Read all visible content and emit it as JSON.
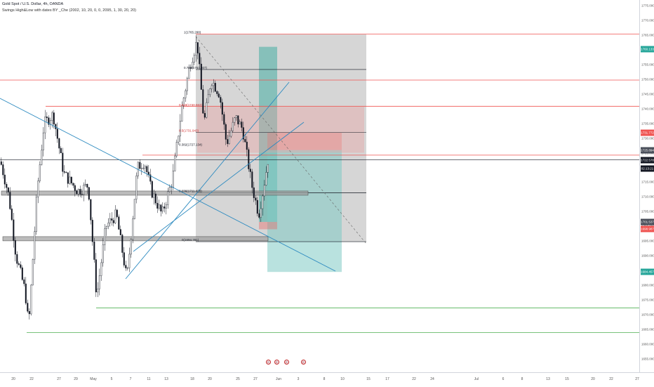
{
  "header": {
    "symbol_line": "Gold Spot / U.S. Dollar, 4h, OANDA",
    "indicator_line": "Swings High&Low with dates BY _Che (2002, 10, 20, 0, 0, 2095, 1, 30, 20, 20)"
  },
  "price_axis": {
    "labels": [
      "1775.000",
      "1770.000",
      "1765.000",
      "1760.000",
      "1755.000",
      "1750.000",
      "1745.000",
      "1740.000",
      "1735.000",
      "1730.000",
      "1725.000",
      "1720.000",
      "1715.000",
      "1710.000",
      "1705.000",
      "1700.000",
      "1695.000",
      "1690.000",
      "1685.000",
      "1680.000",
      "1675.000",
      "1670.000",
      "1665.000",
      "1660.000",
      "1655.000"
    ],
    "badges": [
      {
        "text": "1760.133",
        "color": "#26a69a"
      },
      {
        "text": "1731.772",
        "color": "#ef5350"
      },
      {
        "text": "1725.894",
        "color": "#4a4f5a"
      },
      {
        "text": "1722.578",
        "color": "#131722"
      },
      {
        "text": "02:13:21",
        "color": "#131722"
      },
      {
        "text": "1701.537",
        "color": "#4a4f5a"
      },
      {
        "text": "1698.987",
        "color": "#ef5350"
      },
      {
        "text": "1684.457",
        "color": "#26a69a"
      }
    ]
  },
  "time_axis": {
    "labels": [
      "20",
      "22",
      "27",
      "29",
      "May",
      "5",
      "7",
      "11",
      "13",
      "18",
      "20",
      "25",
      "27",
      "Jun",
      "3",
      "8",
      "10",
      "15",
      "17",
      "22",
      "24",
      "Jul",
      "6",
      "8",
      "13",
      "15",
      "20",
      "22",
      "27"
    ]
  },
  "fib_labels": [
    "1(1765.288)",
    "0.786(1753.307)",
    "0.618(1740.563)",
    "0.5(1731.943)",
    "0.382(1727.134)",
    "0.236(1711.428)",
    "0(1694.781)"
  ],
  "events": [
    "E",
    "E",
    "E",
    "E"
  ],
  "colors": {
    "up": "#ffffff",
    "down": "#131722",
    "trend": "#2e8bc0",
    "resistance": "#ef5350",
    "support": "#26a69a"
  },
  "chart_data": {
    "type": "candlestick",
    "title": "Gold Spot / U.S. Dollar, 4h, OANDA",
    "xlabel": "",
    "ylabel": "",
    "ylim": [
      1653,
      1777
    ],
    "price_lines": {
      "resistance": [
        1765.3,
        1749.7,
        1740.8,
        1724.2
      ],
      "support": [
        1672.3,
        1663.9
      ]
    },
    "fib_levels": [
      1765.288,
      1753.307,
      1740.563,
      1731.943,
      1727.134,
      1711.428,
      1694.781
    ],
    "position_long": {
      "entry": 1725.894,
      "target": 1684.457,
      "stop": 1731.772
    },
    "position_short": {
      "entry": 1722.578,
      "stop": 1701.537,
      "target": 1698.987
    }
  }
}
